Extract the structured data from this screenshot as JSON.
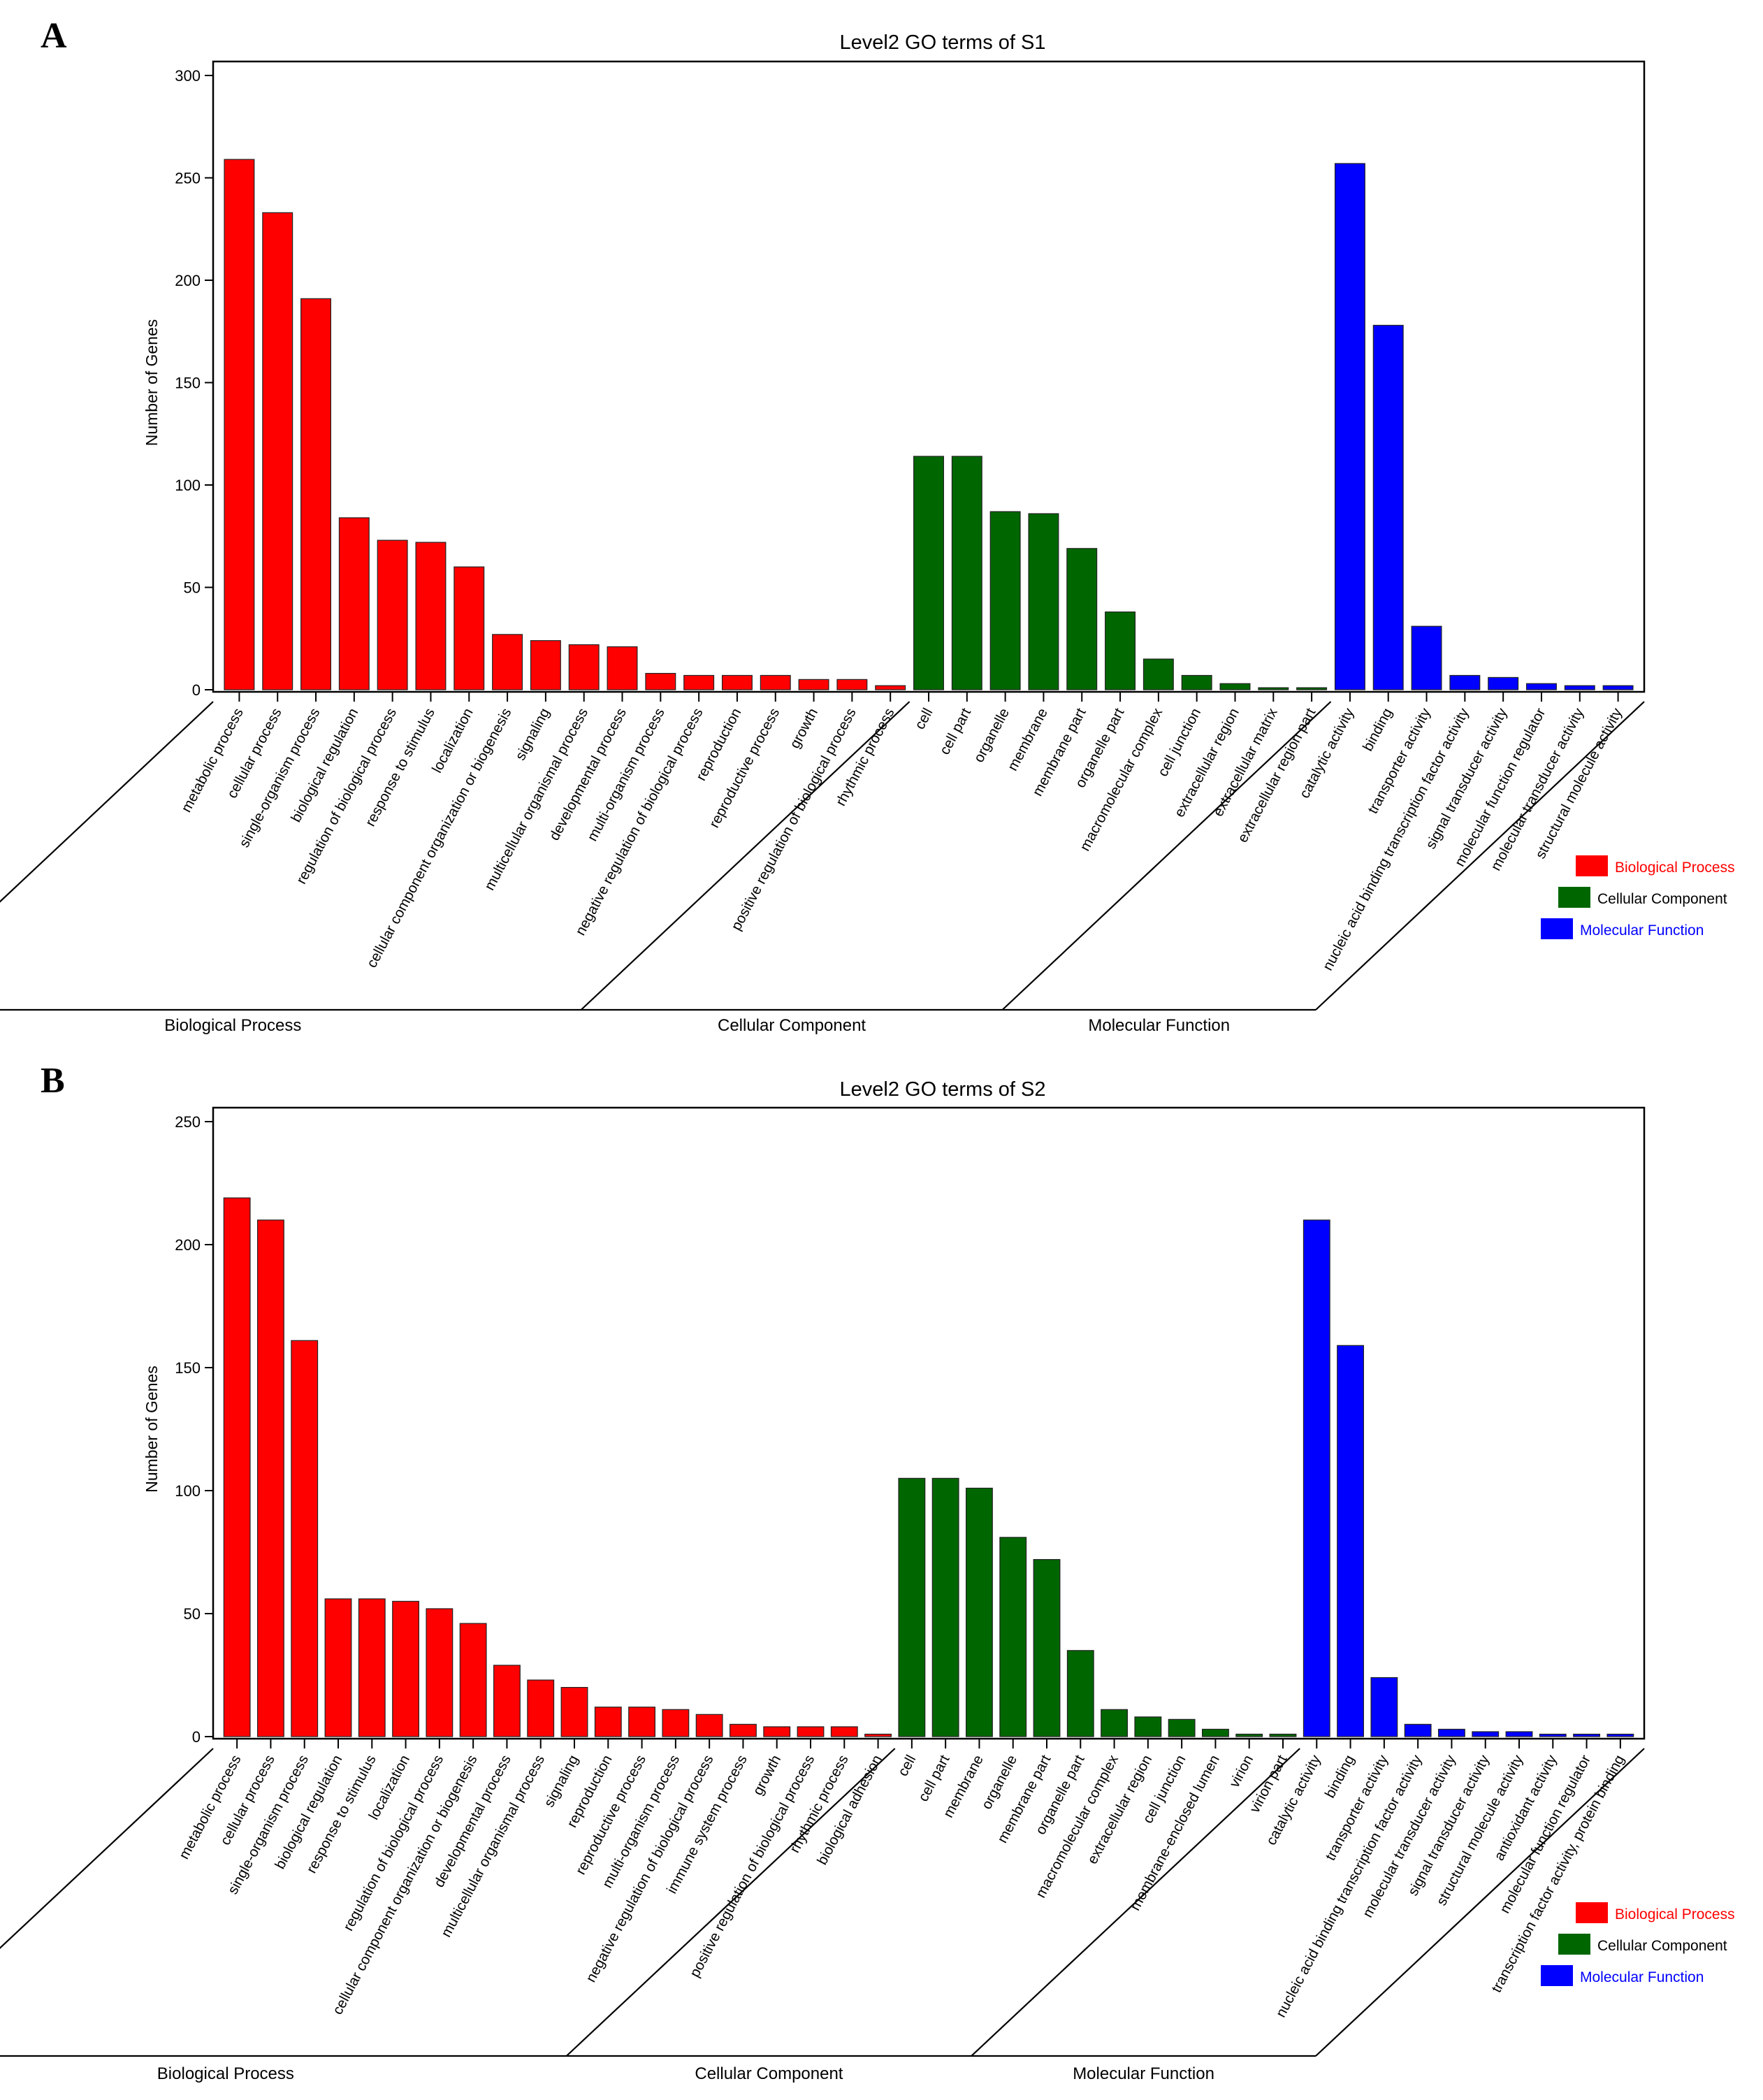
{
  "colors": {
    "biological_process": "#ff0000",
    "cellular_component": "#006600",
    "molecular_function": "#0000ff",
    "axis": "#000000"
  },
  "group_labels": {
    "biological_process": "Biological Process",
    "cellular_component": "Cellular Component",
    "molecular_function": "Molecular Function"
  },
  "legend": [
    "Biological Process",
    "Cellular Component",
    "Molecular Function"
  ],
  "chart_data": [
    {
      "type": "bar",
      "panel": "A",
      "title": "Level2 GO terms of S1",
      "ylabel": "Number of Genes",
      "xlabel": "",
      "ylim": [
        0,
        300
      ],
      "yticks": [
        0,
        50,
        100,
        150,
        200,
        250,
        300
      ],
      "groups": [
        {
          "name": "Biological Process",
          "color_key": "biological_process",
          "categories": [
            "metabolic process",
            "cellular process",
            "single-organism process",
            "biological regulation",
            "regulation of biological process",
            "response to stimulus",
            "localization",
            "cellular component organization or biogenesis",
            "signaling",
            "multicellular organismal process",
            "developmental process",
            "multi-organism process",
            "negative regulation of biological process",
            "reproduction",
            "reproductive process",
            "growth",
            "positive regulation of biological process",
            "rhythmic process"
          ],
          "values": [
            259,
            233,
            191,
            84,
            73,
            72,
            60,
            27,
            24,
            22,
            21,
            8,
            7,
            7,
            7,
            5,
            5,
            2
          ]
        },
        {
          "name": "Cellular Component",
          "color_key": "cellular_component",
          "categories": [
            "cell",
            "cell part",
            "organelle",
            "membrane",
            "membrane part",
            "organelle part",
            "macromolecular complex",
            "cell junction",
            "extracellular region",
            "extracellular matrix",
            "extracellular region part"
          ],
          "values": [
            114,
            114,
            87,
            86,
            69,
            38,
            15,
            7,
            3,
            1,
            1
          ]
        },
        {
          "name": "Molecular Function",
          "color_key": "molecular_function",
          "categories": [
            "catalytic activity",
            "binding",
            "transporter activity",
            "nucleic acid binding transcription factor activity",
            "signal transducer activity",
            "molecular function regulator",
            "molecular transducer activity",
            "structural molecule activity"
          ],
          "values": [
            257,
            178,
            31,
            7,
            6,
            3,
            2,
            2
          ]
        }
      ]
    },
    {
      "type": "bar",
      "panel": "B",
      "title": "Level2 GO terms of S2",
      "ylabel": "Number of Genes",
      "xlabel": "",
      "ylim": [
        0,
        250
      ],
      "yticks": [
        0,
        50,
        100,
        150,
        200,
        250
      ],
      "groups": [
        {
          "name": "Biological Process",
          "color_key": "biological_process",
          "categories": [
            "metabolic process",
            "cellular process",
            "single-organism process",
            "biological regulation",
            "response to stimulus",
            "localization",
            "regulation of biological process",
            "cellular component organization or biogenesis",
            "developmental process",
            "multicellular organismal process",
            "signaling",
            "reproduction",
            "reproductive process",
            "multi-organism process",
            "negative regulation of biological process",
            "immune system process",
            "growth",
            "positive regulation of biological process",
            "rhythmic process",
            "biological adhesion"
          ],
          "values": [
            219,
            210,
            161,
            56,
            56,
            55,
            52,
            46,
            29,
            23,
            20,
            12,
            12,
            11,
            9,
            5,
            4,
            4,
            4,
            1
          ]
        },
        {
          "name": "Cellular Component",
          "color_key": "cellular_component",
          "categories": [
            "cell",
            "cell part",
            "membrane",
            "organelle",
            "membrane part",
            "organelle part",
            "macromolecular complex",
            "extracellular region",
            "cell junction",
            "membrane-enclosed lumen",
            "virion",
            "virion part"
          ],
          "values": [
            105,
            105,
            101,
            81,
            72,
            35,
            11,
            8,
            7,
            3,
            1,
            1
          ]
        },
        {
          "name": "Molecular Function",
          "color_key": "molecular_function",
          "categories": [
            "catalytic activity",
            "binding",
            "transporter activity",
            "nucleic acid binding transcription factor activity",
            "molecular transducer activity",
            "signal transducer activity",
            "structural molecule activity",
            "antioxidant activity",
            "molecular function regulator",
            "transcription factor activity, protein binding"
          ],
          "values": [
            210,
            159,
            24,
            5,
            3,
            2,
            2,
            1,
            1,
            1
          ]
        }
      ]
    }
  ]
}
